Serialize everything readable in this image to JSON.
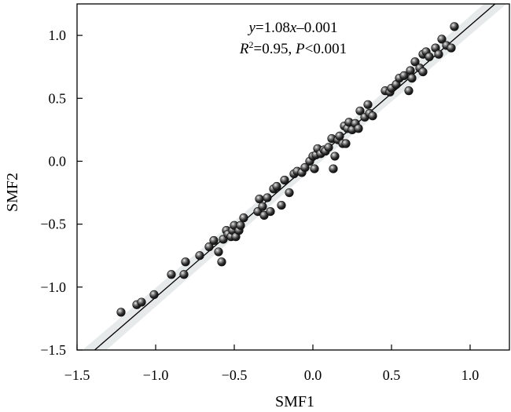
{
  "chart_data": {
    "type": "scatter",
    "xlabel": "SMF1",
    "ylabel": "SMF2",
    "xlim": [
      -1.5,
      1.25
    ],
    "ylim": [
      -1.5,
      1.25
    ],
    "xticks": [
      -1.5,
      -1.0,
      -0.5,
      0.0,
      0.5,
      1.0
    ],
    "yticks": [
      -1.5,
      -1.0,
      -0.5,
      0.0,
      0.5,
      1.0
    ],
    "xtick_labels": [
      "−1.5",
      "−1.0",
      "−0.5",
      "0.0",
      "0.5",
      "1.0"
    ],
    "ytick_labels": [
      "−1.5",
      "−1.0",
      "−0.5",
      "0.0",
      "0.5",
      "1.0"
    ],
    "grid": false,
    "fit": {
      "slope": 1.08,
      "intercept": -0.001
    },
    "annotation": {
      "eq_y": "y",
      "eq_rest": "=1.08",
      "eq_x": "x",
      "eq_tail": "–0.001",
      "r_label": "R",
      "r_sup": "2",
      "r_value": "=0.95, ",
      "p_label": "P",
      "p_value": "<0.001"
    },
    "colors": {
      "points": "#2b2b2b",
      "line": "#000000",
      "band": "#e6eaeb"
    },
    "series": [
      {
        "x": [
          -1.22,
          -1.12,
          -1.09,
          -1.01,
          -0.9,
          -0.82,
          -0.81,
          -0.72,
          -0.66,
          -0.63,
          -0.6,
          -0.58,
          -0.57,
          -0.55,
          -0.54,
          -0.52,
          -0.51,
          -0.5,
          -0.49,
          -0.47,
          -0.46,
          -0.44,
          -0.35,
          -0.34,
          -0.32,
          -0.31,
          -0.29,
          -0.27,
          -0.25,
          -0.23,
          -0.2,
          -0.18,
          -0.15,
          -0.12,
          -0.1,
          -0.07,
          -0.05,
          -0.02,
          0.0,
          0.01,
          0.02,
          0.03,
          0.05,
          0.07,
          0.08,
          0.1,
          0.12,
          0.13,
          0.14,
          0.16,
          0.17,
          0.19,
          0.2,
          0.21,
          0.22,
          0.23,
          0.25,
          0.27,
          0.29,
          0.3,
          0.33,
          0.35,
          0.36,
          0.38,
          0.46,
          0.49,
          0.5,
          0.53,
          0.55,
          0.58,
          0.61,
          0.62,
          0.63,
          0.65,
          0.68,
          0.7,
          0.7,
          0.72,
          0.74,
          0.78,
          0.8,
          0.82,
          0.85,
          0.88,
          0.9
        ],
        "y": [
          -1.2,
          -1.14,
          -1.12,
          -1.06,
          -0.9,
          -0.9,
          -0.8,
          -0.75,
          -0.68,
          -0.63,
          -0.72,
          -0.8,
          -0.62,
          -0.55,
          -0.58,
          -0.6,
          -0.55,
          -0.51,
          -0.6,
          -0.55,
          -0.51,
          -0.45,
          -0.4,
          -0.3,
          -0.36,
          -0.43,
          -0.29,
          -0.4,
          -0.22,
          -0.2,
          -0.35,
          -0.15,
          -0.25,
          -0.1,
          -0.08,
          -0.09,
          -0.05,
          0.0,
          0.04,
          -0.06,
          0.05,
          0.1,
          0.06,
          0.09,
          0.08,
          0.11,
          0.18,
          -0.06,
          0.04,
          0.17,
          0.2,
          0.14,
          0.28,
          0.14,
          0.26,
          0.31,
          0.25,
          0.3,
          0.26,
          0.4,
          0.35,
          0.45,
          0.38,
          0.36,
          0.56,
          0.55,
          0.58,
          0.61,
          0.66,
          0.68,
          0.56,
          0.72,
          0.66,
          0.79,
          0.74,
          0.85,
          0.71,
          0.87,
          0.83,
          0.9,
          0.85,
          0.97,
          0.92,
          0.9,
          1.07
        ]
      }
    ]
  }
}
